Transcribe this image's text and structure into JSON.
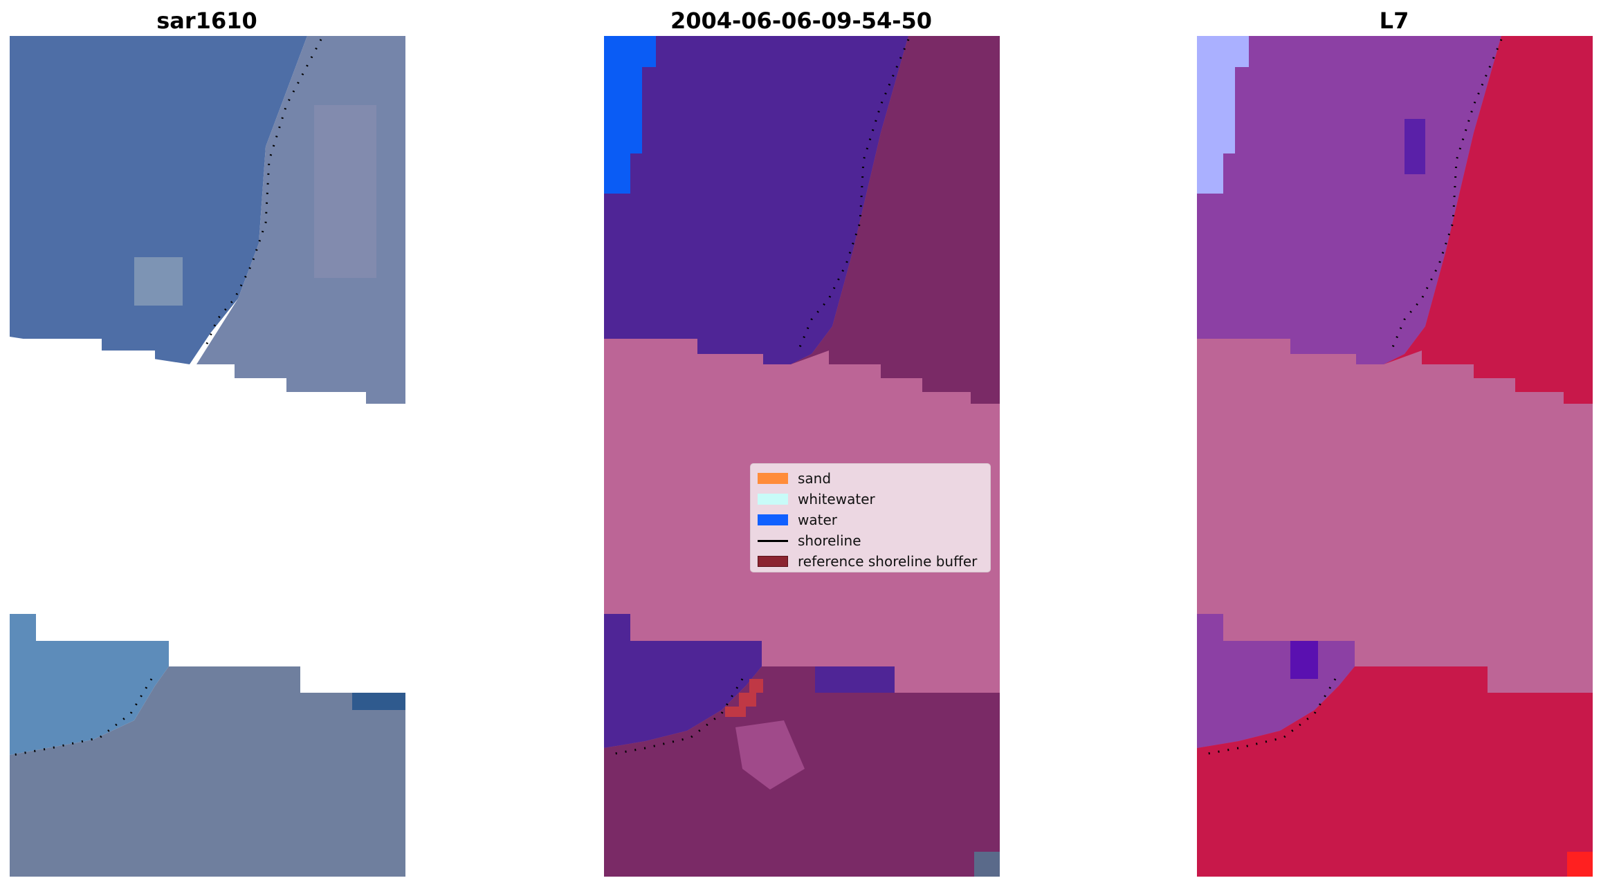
{
  "panels": [
    {
      "title": "sar1610"
    },
    {
      "title": "2004-06-06-09-54-50"
    },
    {
      "title": "L7"
    }
  ],
  "legend": {
    "items": [
      {
        "label": "sand",
        "color": "#ff8c3a"
      },
      {
        "label": "whitewater",
        "color": "#c8fbf8"
      },
      {
        "label": "water",
        "color": "#1060ff"
      },
      {
        "label": "shoreline",
        "color": "#000000"
      },
      {
        "label": "reference shoreline buffer",
        "color": "#8b2430"
      }
    ]
  },
  "colors": {
    "sar_water": "#4e6ea6",
    "sar_land": "#6b7fa8",
    "class_water": "#4f2596",
    "class_land": "#7a2a66",
    "class_nodata": "#bc6596",
    "class_bright_water": "#0a5cf5",
    "l7_water": "#8c40a4",
    "l7_land": "#c8184a",
    "l7_nodata": "#bd6596",
    "l7_light": "#aab0ff"
  }
}
